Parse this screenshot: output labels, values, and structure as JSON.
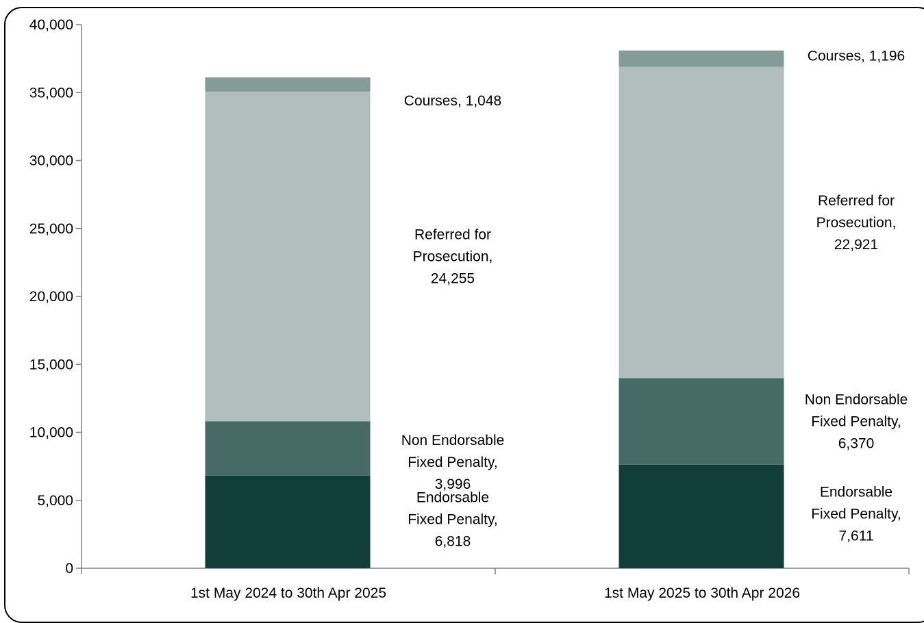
{
  "chart_data": {
    "type": "bar",
    "stacked": true,
    "categories": [
      "1st May 2024 to 30th Apr 2025",
      "1st May 2025 to 30th Apr 2026"
    ],
    "ylim": [
      0,
      40000
    ],
    "yticks": [
      "0",
      "5,000",
      "10,000",
      "15,000",
      "20,000",
      "25,000",
      "30,000",
      "35,000",
      "40,000"
    ],
    "ytick_values": [
      0,
      5000,
      10000,
      15000,
      20000,
      25000,
      30000,
      35000,
      40000
    ],
    "grid": false,
    "legend": "none",
    "series": [
      {
        "name": "Endorsable Fixed Penalty",
        "values": [
          6818,
          7611
        ],
        "color": "#113e38",
        "labels": [
          [
            "Endorsable",
            "Fixed Penalty,",
            "6,818"
          ],
          [
            "Endorsable",
            "Fixed Penalty,",
            "7,611"
          ]
        ]
      },
      {
        "name": "Non Endorsable Fixed Penalty",
        "values": [
          3996,
          6370
        ],
        "color": "#466a66",
        "labels": [
          [
            "Non Endorsable",
            "Fixed Penalty,",
            "3,996"
          ],
          [
            "Non Endorsable",
            "Fixed Penalty,",
            "6,370"
          ]
        ]
      },
      {
        "name": "Referred for Prosecution",
        "values": [
          24255,
          22921
        ],
        "color": "#b0bfbd",
        "labels": [
          [
            "Referred for",
            "Prosecution,",
            "24,255"
          ],
          [
            "Referred for",
            "Prosecution,",
            "22,921"
          ]
        ]
      },
      {
        "name": "Courses",
        "values": [
          1048,
          1196
        ],
        "color": "#849c98",
        "labels": [
          [
            "Courses, 1,048"
          ],
          [
            "Courses, 1,196"
          ]
        ]
      }
    ]
  }
}
